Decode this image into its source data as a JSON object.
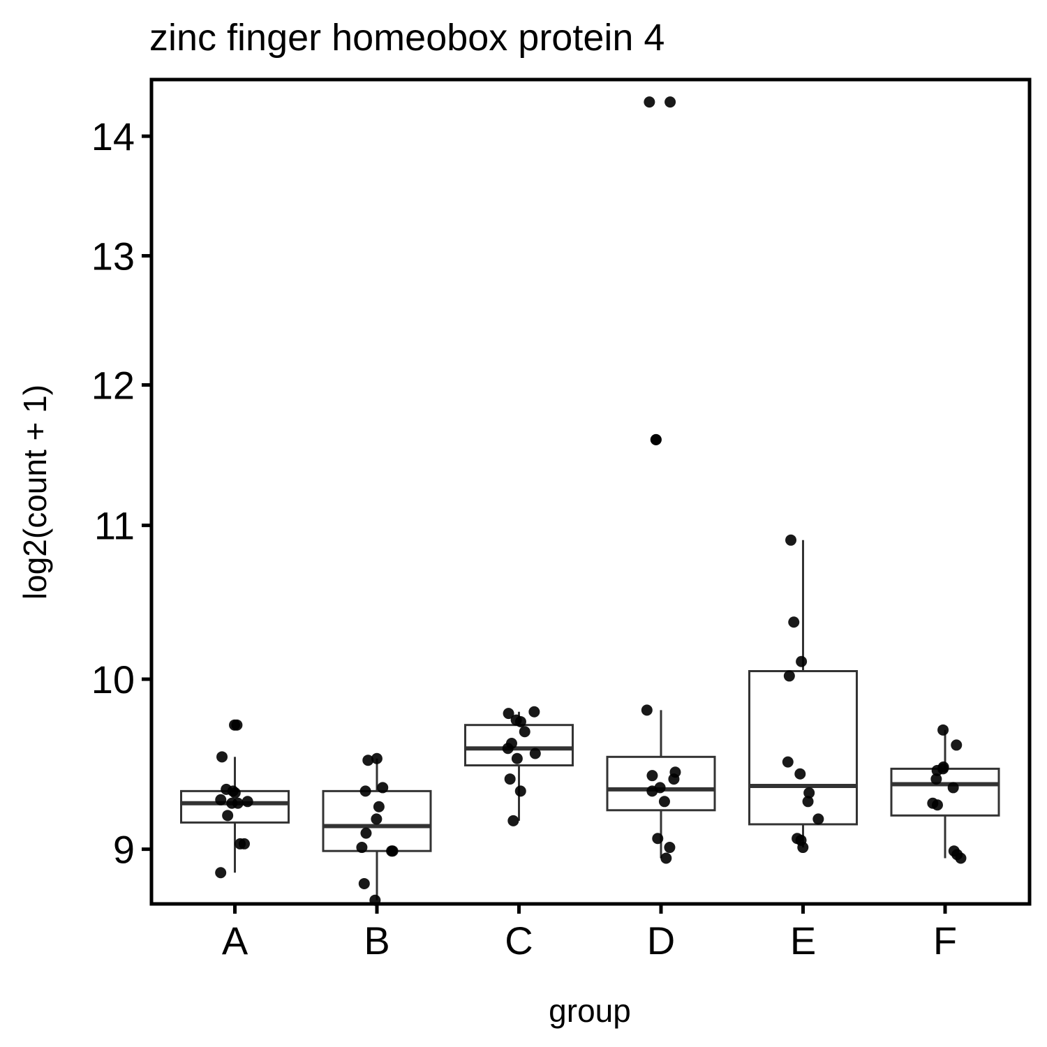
{
  "chart_data": {
    "type": "box",
    "title": "zinc finger homeobox protein 4",
    "xlabel": "group",
    "ylabel": "log2(count + 1)",
    "y_scale": "log",
    "ylim": [
      8.7,
      14.5
    ],
    "yticks": [
      9,
      10,
      11,
      12,
      13,
      14
    ],
    "ytick_labels": [
      "9",
      "10",
      "11",
      "12",
      "13",
      "14"
    ],
    "categories": [
      "A",
      "B",
      "C",
      "D",
      "E",
      "F"
    ],
    "grid": false,
    "legend": "none",
    "colors": {
      "box": "#333333",
      "point": "#000000",
      "frame": "#000000"
    },
    "boxes": [
      {
        "group": "A",
        "whisker_low": 8.87,
        "q1": 9.15,
        "median": 9.26,
        "q3": 9.33,
        "whisker_high": 9.53
      },
      {
        "group": "B",
        "whisker_low": 8.72,
        "q1": 8.99,
        "median": 9.13,
        "q3": 9.33,
        "whisker_high": 9.52
      },
      {
        "group": "C",
        "whisker_low": 9.16,
        "q1": 9.48,
        "median": 9.58,
        "q3": 9.72,
        "whisker_high": 9.8
      },
      {
        "group": "D",
        "whisker_low": 8.95,
        "q1": 9.22,
        "median": 9.34,
        "q3": 9.53,
        "whisker_high": 9.81
      },
      {
        "group": "E",
        "whisker_low": 9.01,
        "q1": 9.14,
        "median": 9.36,
        "q3": 10.05,
        "whisker_high": 10.9
      },
      {
        "group": "F",
        "whisker_low": 8.95,
        "q1": 9.19,
        "median": 9.37,
        "q3": 9.46,
        "whisker_high": 9.69
      }
    ],
    "points": [
      {
        "group": "A",
        "values": [
          9.72,
          9.72,
          9.53,
          9.34,
          9.33,
          9.32,
          9.28,
          9.27,
          9.26,
          9.26,
          9.19,
          9.03,
          9.03,
          8.87
        ]
      },
      {
        "group": "B",
        "values": [
          9.52,
          9.51,
          9.35,
          9.33,
          9.24,
          9.17,
          9.09,
          9.01,
          8.99,
          8.99,
          8.81,
          8.72
        ]
      },
      {
        "group": "C",
        "values": [
          9.8,
          9.79,
          9.75,
          9.74,
          9.68,
          9.61,
          9.58,
          9.55,
          9.52,
          9.4,
          9.33,
          9.16
        ]
      },
      {
        "group": "D",
        "values": [
          14.3,
          14.3,
          11.6,
          11.6,
          9.81,
          9.44,
          9.42,
          9.4,
          9.35,
          9.33,
          9.27,
          9.06,
          9.01,
          8.95
        ]
      },
      {
        "group": "E",
        "values": [
          10.9,
          10.36,
          10.11,
          10.02,
          9.5,
          9.43,
          9.32,
          9.27,
          9.17,
          9.06,
          9.05,
          9.01
        ]
      },
      {
        "group": "F",
        "values": [
          9.69,
          9.6,
          9.47,
          9.46,
          9.45,
          9.4,
          9.35,
          9.26,
          9.25,
          8.99,
          8.97,
          8.95
        ]
      }
    ]
  }
}
